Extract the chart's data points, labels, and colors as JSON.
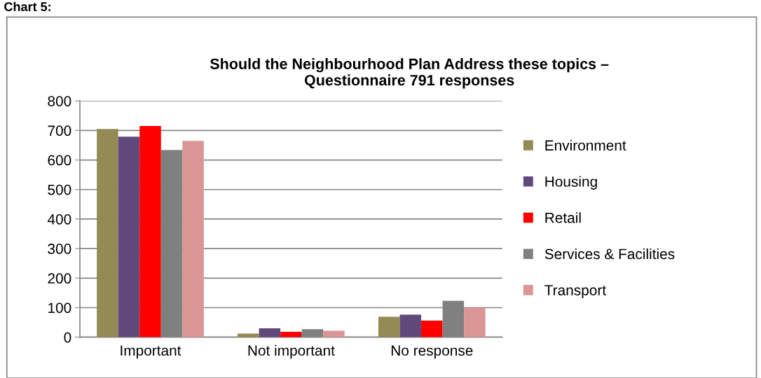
{
  "chart_data": {
    "type": "bar",
    "title": "Should the Neighbourhood Plan Address these topics –\nQuestionnaire 791 responses",
    "annotations": [
      "Chart 5:"
    ],
    "categories": [
      "Important",
      "Not important",
      "No response"
    ],
    "series": [
      {
        "name": "Environment",
        "color": "#948a54",
        "values": [
          705,
          12,
          69
        ]
      },
      {
        "name": "Housing",
        "color": "#604a7b",
        "values": [
          679,
          30,
          76
        ]
      },
      {
        "name": "Retail",
        "color": "#ff0000",
        "values": [
          715,
          18,
          56
        ]
      },
      {
        "name": "Services & Facilities",
        "color": "#808080",
        "values": [
          634,
          27,
          123
        ]
      },
      {
        "name": "Transport",
        "color": "#d99694",
        "values": [
          665,
          22,
          100
        ]
      }
    ],
    "ylim": [
      0,
      800
    ],
    "yticks": [
      0,
      100,
      200,
      300,
      400,
      500,
      600,
      700,
      800
    ],
    "grid": "y",
    "legend": "right"
  }
}
